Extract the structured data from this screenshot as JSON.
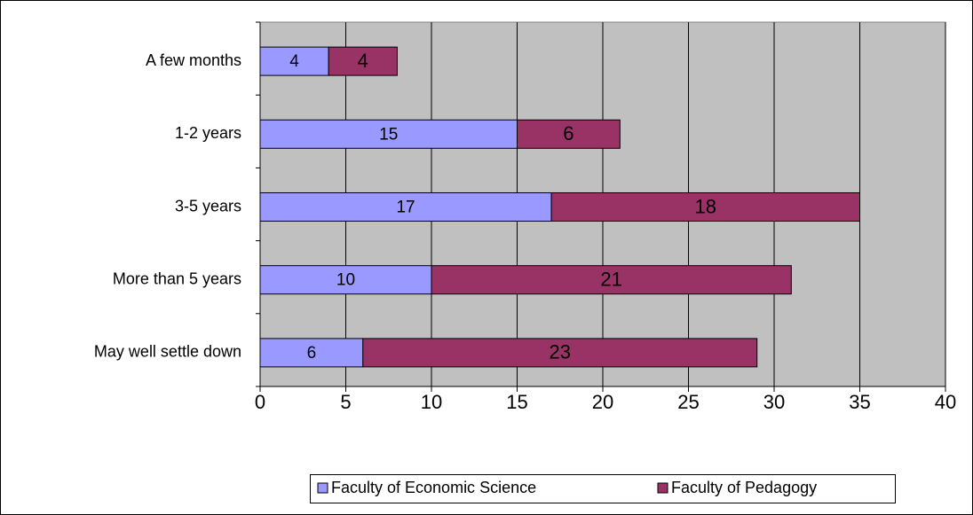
{
  "chart_data": {
    "type": "stacked-barh",
    "categories": [
      "A few months",
      "1-2 years",
      "3-5 years",
      "More than 5 years",
      "May well settle down"
    ],
    "series": [
      {
        "name": "Faculty of Economic Science",
        "color": "#9999ff",
        "values": [
          4,
          15,
          17,
          10,
          6
        ]
      },
      {
        "name": "Faculty of Pedagogy",
        "color": "#993366",
        "values": [
          4,
          6,
          18,
          21,
          23
        ]
      }
    ],
    "xlim": [
      0,
      40
    ],
    "xticks": [
      0,
      5,
      10,
      15,
      20,
      25,
      30,
      35,
      40
    ],
    "grid": true,
    "legend": "bottom",
    "background": "#c0c0c0"
  }
}
